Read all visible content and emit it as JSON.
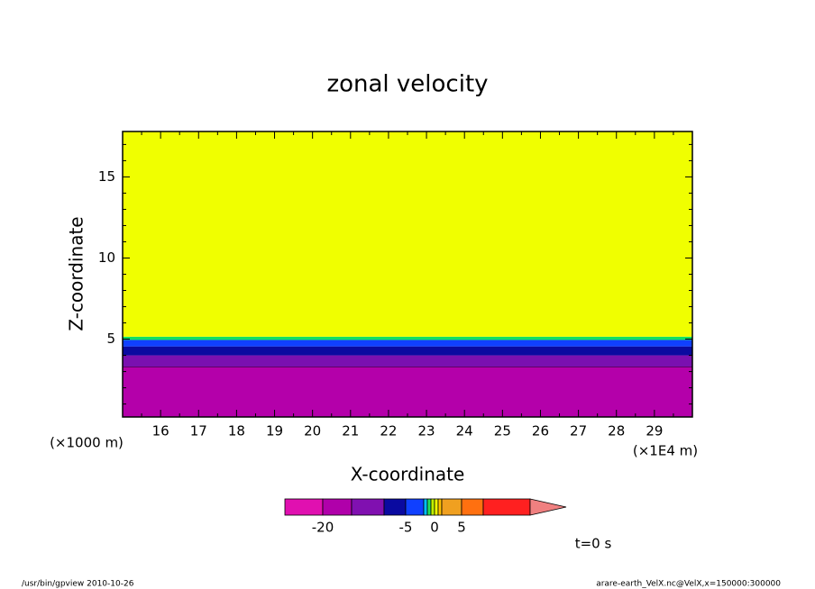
{
  "chart_data": {
    "type": "contour",
    "title": "zonal velocity",
    "x_label": "X-coordinate",
    "y_label": "Z-coordinate",
    "x_unit": "(×1E4 m)",
    "y_unit": "(×1000 m)",
    "xlim": [
      15,
      30
    ],
    "ylim": [
      0.2,
      17.8
    ],
    "xticks": [
      16,
      17,
      18,
      19,
      20,
      21,
      22,
      23,
      24,
      25,
      26,
      27,
      28,
      29
    ],
    "xminor_ticks": [
      15.5,
      16.5,
      17.5,
      18.5,
      19.5,
      20.5,
      21.5,
      22.5,
      23.5,
      24.5,
      25.5,
      26.5,
      27.5,
      28.5,
      29.5
    ],
    "yticks": [
      5,
      10,
      15
    ],
    "yminor_ticks": [
      1,
      2,
      3,
      4,
      6,
      7,
      8,
      9,
      11,
      12,
      13,
      14,
      16,
      17
    ],
    "layers": [
      {
        "color": "#b400aa",
        "range": [
          0.2,
          3.3
        ]
      },
      {
        "color": "#7a10b0",
        "range": [
          3.3,
          4.0
        ]
      },
      {
        "color": "#0a0aa0",
        "range": [
          4.0,
          4.55
        ]
      },
      {
        "color": "#1040ff",
        "range": [
          4.55,
          4.95
        ]
      },
      {
        "color": "#10e060",
        "range": [
          4.95,
          5.15
        ]
      },
      {
        "color": "#f0ff00",
        "range": [
          5.15,
          17.8
        ]
      }
    ],
    "colorbar": {
      "colors": [
        "#e010b0",
        "#b000aa",
        "#8010b0",
        "#0a0aa0",
        "#1040ff",
        "#00c0ff",
        "#20e060",
        "#c0f000",
        "#f0ff00",
        "#ffc000",
        "#f0a020",
        "#ff7010",
        "#ff2020"
      ],
      "extend_color": "#f08080",
      "ticks": [
        -20,
        -5,
        0,
        5
      ]
    },
    "time_label": "t=0 s",
    "footer_left": "/usr/bin/gpview  2010-10-26",
    "footer_right": "arare-earth_VelX.nc@VelX,x=150000:300000"
  }
}
